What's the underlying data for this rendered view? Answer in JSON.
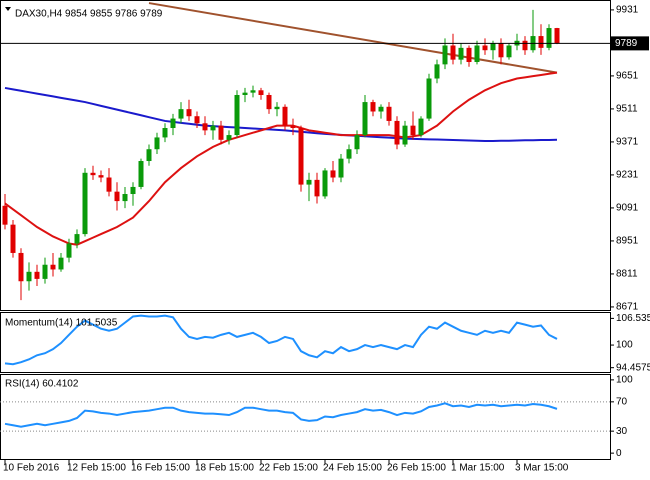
{
  "chart_data": [
    {
      "type": "candlestick",
      "title": "DAX30,H4 9854 9855 9786 9789",
      "categories": [
        "10 Feb 2016",
        null,
        null,
        null,
        null,
        null,
        null,
        null,
        "12 Feb 15:00",
        null,
        null,
        null,
        null,
        null,
        null,
        null,
        "16 Feb 15:00",
        null,
        null,
        null,
        null,
        null,
        null,
        null,
        "18 Feb 15:00",
        null,
        null,
        null,
        null,
        null,
        null,
        null,
        "22 Feb 15:00",
        null,
        null,
        null,
        null,
        null,
        null,
        null,
        "24 Feb 15:00",
        null,
        null,
        null,
        null,
        null,
        null,
        null,
        "26 Feb 15:00",
        null,
        null,
        null,
        null,
        null,
        null,
        null,
        "1 Mar 15:00",
        null,
        null,
        null,
        null,
        null,
        null,
        null,
        "3 Mar 15:00",
        null,
        null,
        null,
        null,
        null
      ],
      "open": [
        9100,
        9020,
        8900,
        8780,
        8820,
        8790,
        8850,
        8830,
        8880,
        8940,
        8980,
        9240,
        9230,
        9220,
        9160,
        9120,
        9150,
        9180,
        9290,
        9340,
        9390,
        9430,
        9470,
        9510,
        9480,
        9450,
        9420,
        9440,
        9380,
        9400,
        9570,
        9580,
        9590,
        9570,
        9510,
        9520,
        9440,
        9430,
        9190,
        9210,
        9140,
        9250,
        9220,
        9300,
        9340,
        9400,
        9540,
        9500,
        9520,
        9460,
        9360,
        9440,
        9400,
        9470,
        9640,
        9700,
        9780,
        9720,
        9770,
        9710,
        9780,
        9760,
        9790,
        9730,
        9780,
        9800,
        9760,
        9820,
        9770,
        9854
      ],
      "high": [
        9150,
        9040,
        8920,
        8860,
        8850,
        8880,
        8900,
        8900,
        8960,
        9000,
        9260,
        9270,
        9250,
        9260,
        9200,
        9180,
        9200,
        9300,
        9360,
        9410,
        9450,
        9490,
        9540,
        9550,
        9500,
        9480,
        9460,
        9460,
        9420,
        9590,
        9600,
        9610,
        9600,
        9580,
        9540,
        9530,
        9470,
        9440,
        9240,
        9240,
        9260,
        9290,
        9320,
        9360,
        9420,
        9570,
        9550,
        9530,
        9540,
        9480,
        9460,
        9500,
        9480,
        9660,
        9720,
        9810,
        9830,
        9790,
        9780,
        9800,
        9810,
        9800,
        9810,
        9790,
        9830,
        9820,
        9931,
        9870,
        9870,
        9855
      ],
      "low": [
        9000,
        8880,
        8700,
        8740,
        8760,
        8770,
        8800,
        8820,
        8860,
        8920,
        8970,
        9210,
        9200,
        9140,
        9080,
        9090,
        9100,
        9170,
        9270,
        9320,
        9370,
        9400,
        9450,
        9460,
        9430,
        9400,
        9380,
        9360,
        9360,
        9390,
        9540,
        9560,
        9550,
        9490,
        9480,
        9420,
        9400,
        9160,
        9120,
        9110,
        9130,
        9200,
        9200,
        9280,
        9320,
        9390,
        9480,
        9470,
        9440,
        9340,
        9350,
        9380,
        9390,
        9460,
        9620,
        9680,
        9700,
        9700,
        9690,
        9700,
        9740,
        9720,
        9700,
        9720,
        9760,
        9740,
        9750,
        9740,
        9760,
        9786
      ],
      "close": [
        9020,
        8900,
        8780,
        8820,
        8790,
        8850,
        8830,
        8880,
        8940,
        8980,
        9240,
        9230,
        9220,
        9160,
        9120,
        9150,
        9180,
        9290,
        9340,
        9390,
        9430,
        9470,
        9510,
        9480,
        9450,
        9420,
        9440,
        9380,
        9400,
        9570,
        9580,
        9590,
        9570,
        9510,
        9520,
        9440,
        9430,
        9190,
        9210,
        9140,
        9250,
        9220,
        9300,
        9340,
        9400,
        9540,
        9500,
        9520,
        9460,
        9360,
        9440,
        9400,
        9470,
        9640,
        9700,
        9780,
        9720,
        9770,
        9710,
        9780,
        9760,
        9790,
        9730,
        9780,
        9800,
        9760,
        9820,
        9770,
        9854,
        9789
      ],
      "up_color": "#0a9a0a",
      "down_color": "#e00000",
      "series": [
        {
          "color": "#1a1acc",
          "values": [
            9600,
            9594,
            9588,
            9582,
            9576,
            9570,
            9564,
            9558,
            9552,
            9546,
            9540,
            9532,
            9524,
            9516,
            9508,
            9500,
            9492,
            9484,
            9476,
            9468,
            9460,
            9456,
            9452,
            9448,
            9444,
            9440,
            9438,
            9436,
            9434,
            9432,
            9430,
            9428,
            9426,
            9424,
            9422,
            9420,
            9417,
            9414,
            9411,
            9408,
            9405,
            9403,
            9401,
            9399,
            9397,
            9395,
            9393,
            9391,
            9389,
            9387,
            9385,
            9384,
            9383,
            9382,
            9381,
            9380,
            9379,
            9378,
            9377,
            9376,
            9375,
            9375,
            9376,
            9376,
            9377,
            9378,
            9378,
            9379,
            9379,
            9380
          ]
        },
        {
          "color": "#dd1111",
          "values": [
            9110,
            9085,
            9060,
            9035,
            9010,
            8990,
            8970,
            8955,
            8940,
            8935,
            8950,
            8965,
            8980,
            8995,
            9010,
            9030,
            9050,
            9085,
            9120,
            9160,
            9200,
            9230,
            9260,
            9285,
            9310,
            9330,
            9350,
            9365,
            9380,
            9390,
            9400,
            9410,
            9420,
            9430,
            9440,
            9440,
            9440,
            9430,
            9420,
            9415,
            9410,
            9405,
            9400,
            9400,
            9400,
            9400,
            9400,
            9400,
            9400,
            9395,
            9390,
            9395,
            9400,
            9420,
            9440,
            9470,
            9500,
            9525,
            9550,
            9570,
            9590,
            9605,
            9620,
            9630,
            9640,
            9645,
            9650,
            9655,
            9660,
            9665
          ]
        }
      ],
      "trendline": {
        "x": [
          18,
          69
        ],
        "values": [
          9960,
          9665
        ],
        "color": "#a0522d"
      },
      "price_line": 9789,
      "ylim": [
        8658,
        9973
      ],
      "yticks": [
        9931,
        9651,
        9511,
        9371,
        9231,
        9091,
        8951,
        8811,
        8671
      ]
    },
    {
      "type": "line",
      "title": "Momentum(14) 101.5035",
      "color": "#1e90ff",
      "values": [
        95.5,
        95.3,
        95.8,
        96.5,
        97.5,
        98.0,
        99.0,
        100.5,
        102.5,
        104.5,
        106.0,
        105.0,
        104.0,
        103.5,
        104.0,
        105.5,
        107.0,
        107.2,
        107.0,
        107.0,
        107.2,
        106.8,
        104.0,
        102.0,
        101.5,
        102.0,
        101.8,
        102.5,
        103.0,
        102.0,
        102.5,
        103.0,
        102.0,
        100.5,
        101.0,
        102.0,
        101.5,
        98.5,
        97.5,
        97.0,
        98.5,
        98.0,
        99.5,
        98.5,
        99.0,
        100.0,
        99.5,
        100.0,
        99.5,
        99.0,
        100.0,
        99.5,
        102.5,
        104.5,
        104.0,
        105.5,
        104.5,
        103.5,
        103.0,
        102.5,
        103.5,
        103.0,
        103.5,
        103.0,
        105.5,
        105.0,
        104.5,
        104.8,
        102.5,
        101.5035
      ],
      "ylim": [
        93.4,
        108.1
      ],
      "yticks": [
        106.5353,
        100,
        94.4575
      ]
    },
    {
      "type": "line",
      "title": "RSI(14) 60.4102",
      "color": "#1e90ff",
      "values": [
        40,
        38,
        36,
        38,
        40,
        38,
        40,
        42,
        44,
        48,
        58,
        57,
        55,
        54,
        52,
        54,
        56,
        57,
        58,
        60,
        62,
        62,
        58,
        56,
        55,
        54,
        54,
        53,
        52,
        56,
        62,
        62,
        60,
        58,
        58,
        56,
        55,
        46,
        44,
        45,
        50,
        49,
        52,
        54,
        56,
        60,
        58,
        59,
        56,
        52,
        55,
        54,
        57,
        63,
        65,
        68,
        64,
        65,
        63,
        66,
        65,
        66,
        64,
        65,
        66,
        65,
        67,
        66,
        64,
        60.4102
      ],
      "ylim": [
        -8,
        108
      ],
      "yticks": [
        100,
        70,
        30,
        0
      ],
      "levels": [
        70,
        30
      ]
    }
  ]
}
